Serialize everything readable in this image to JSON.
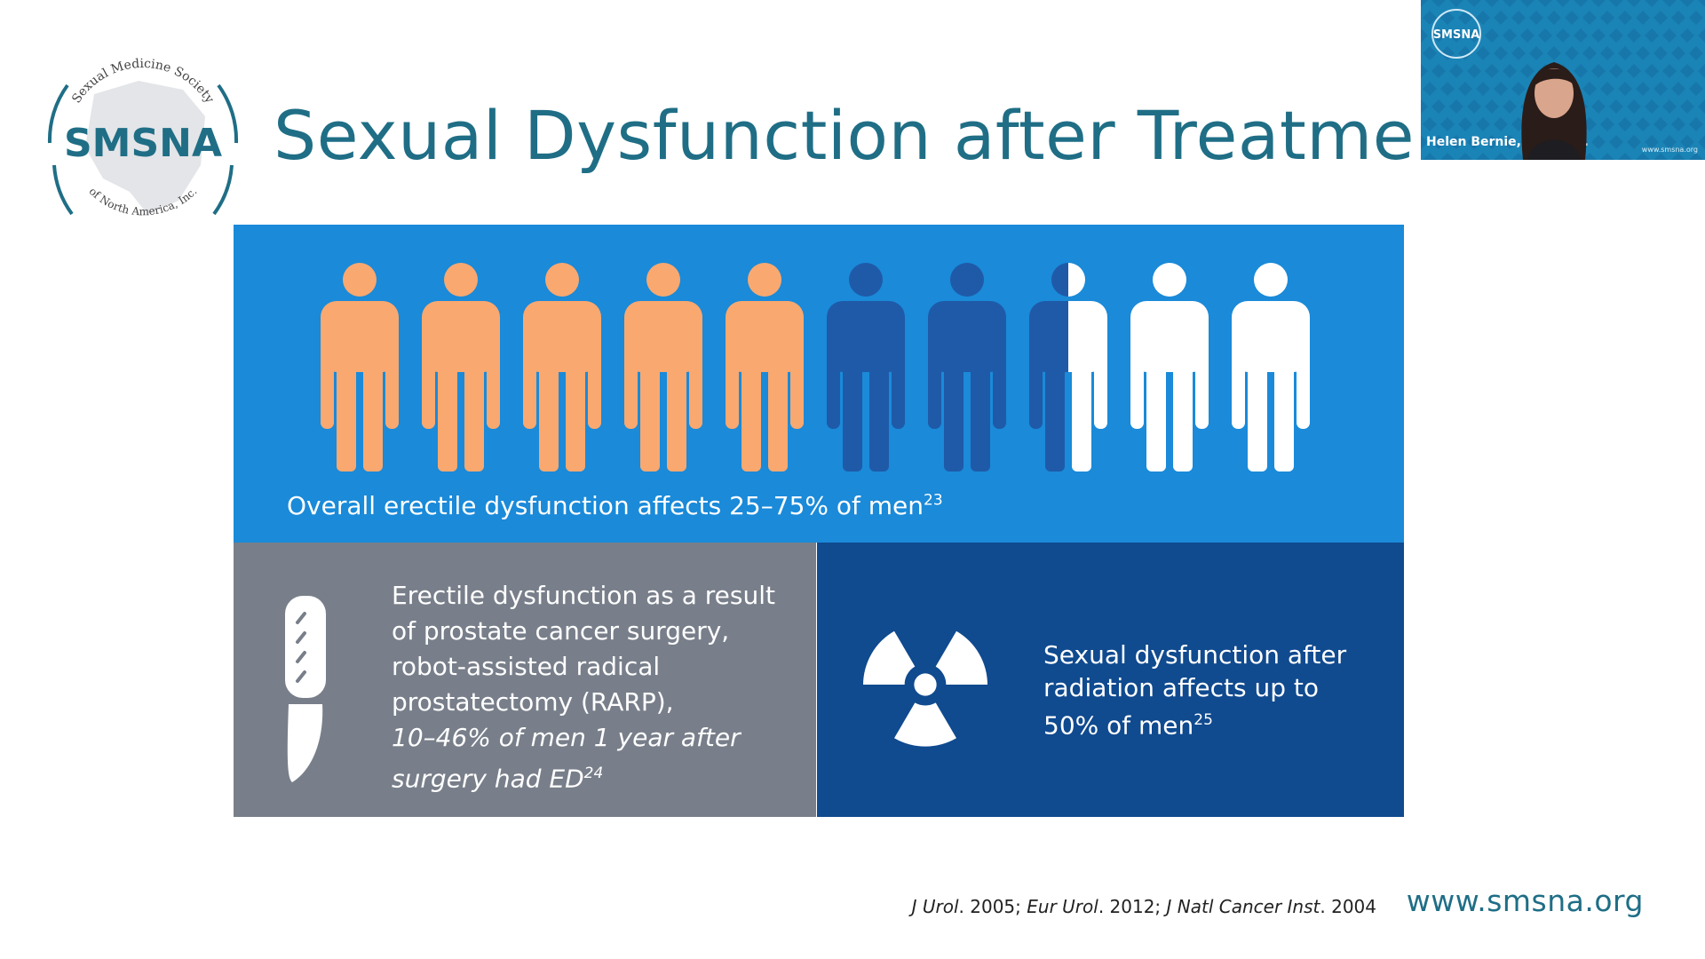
{
  "slide": {
    "title": "Sexual Dysfunction after Treatment",
    "logo": {
      "org_abbrev": "SMSNA",
      "arc_top": "Sexual Medicine Society",
      "arc_bottom": "of North America, Inc."
    },
    "overall": {
      "text": "Overall erectile dysfunction affects 25–75% of men",
      "ref": "23",
      "figures_total": 10,
      "figures_orange": 5,
      "figures_darkblue": 2.5,
      "colors": {
        "orange": "#f9a86f",
        "dark_blue": "#1f5aa8",
        "white": "#ffffff"
      }
    },
    "surgery": {
      "line1": "Erectile dysfunction as a result of prostate cancer surgery, robot-assisted radical prostatectomy (RARP),",
      "line2": "10–46% of men 1 year after surgery had ED",
      "ref": "24",
      "icon": "scalpel-icon"
    },
    "radiation": {
      "text": "Sexual dysfunction after radiation affects up to 50% of men",
      "ref": "25",
      "icon": "radiation-icon"
    },
    "citations": {
      "c1_journal": "J Urol",
      "c1_rest": ". 2005; ",
      "c2_journal": "Eur Urol",
      "c2_rest": ". 2012;  ",
      "c3_journal": "J Natl Cancer Inst",
      "c3_rest": ". 2004"
    },
    "website": "www.smsna.org"
  },
  "video_tile": {
    "badge": "SMSNA",
    "speaker_name": "Helen Bernie, DO, MP...",
    "url": "www.smsna.org"
  },
  "colors": {
    "title": "#1f6e86",
    "top_panel": "#1a8ad9",
    "bottom_left": "#787f8a",
    "bottom_right": "#104a8f"
  }
}
